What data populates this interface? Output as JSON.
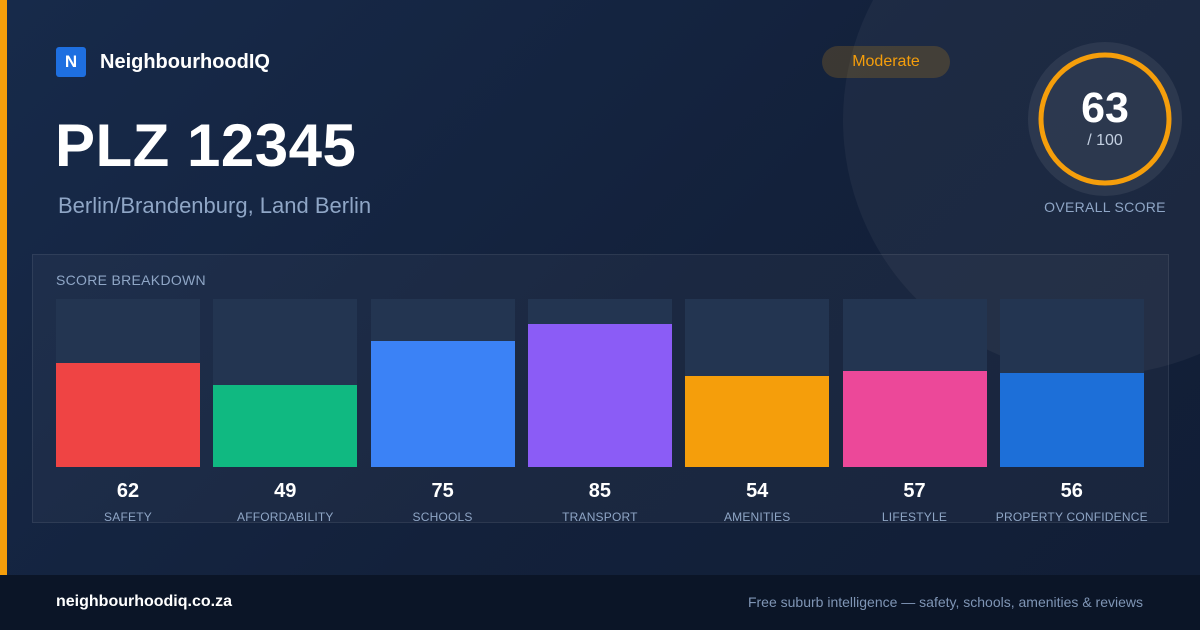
{
  "brand": {
    "logo_letter": "N",
    "name": "NeighbourhoodIQ"
  },
  "location": {
    "title": "PLZ 12345",
    "region": "Berlin/Brandenburg, Land Berlin"
  },
  "rating": {
    "badge": "Moderate",
    "badge_color": "#f59e0b"
  },
  "overall": {
    "score": "63",
    "max": "/ 100",
    "label": "OVERALL SCORE",
    "ring_color": "#f59e0b",
    "fraction": 0.63
  },
  "breakdown": {
    "title": "SCORE BREAKDOWN",
    "items": [
      {
        "label": "SAFETY",
        "value": 62,
        "color": "#ef4444"
      },
      {
        "label": "AFFORDABILITY",
        "value": 49,
        "color": "#10b981"
      },
      {
        "label": "SCHOOLS",
        "value": 75,
        "color": "#3b82f6"
      },
      {
        "label": "TRANSPORT",
        "value": 85,
        "color": "#8b5cf6"
      },
      {
        "label": "AMENITIES",
        "value": 54,
        "color": "#f59e0b"
      },
      {
        "label": "LIFESTYLE",
        "value": 57,
        "color": "#ec4899"
      },
      {
        "label": "PROPERTY CONFIDENCE",
        "value": 56,
        "color": "#1d6fd8"
      }
    ]
  },
  "footer": {
    "site": "neighbourhoodiq.co.za",
    "tagline": "Free suburb intelligence — safety, schools, amenities & reviews"
  },
  "chart_data": {
    "type": "bar",
    "title": "SCORE BREAKDOWN",
    "categories": [
      "SAFETY",
      "AFFORDABILITY",
      "SCHOOLS",
      "TRANSPORT",
      "AMENITIES",
      "LIFESTYLE",
      "PROPERTY CONFIDENCE"
    ],
    "values": [
      62,
      49,
      75,
      85,
      54,
      57,
      56
    ],
    "ylim": [
      0,
      100
    ],
    "xlabel": "",
    "ylabel": "",
    "grid": false
  }
}
